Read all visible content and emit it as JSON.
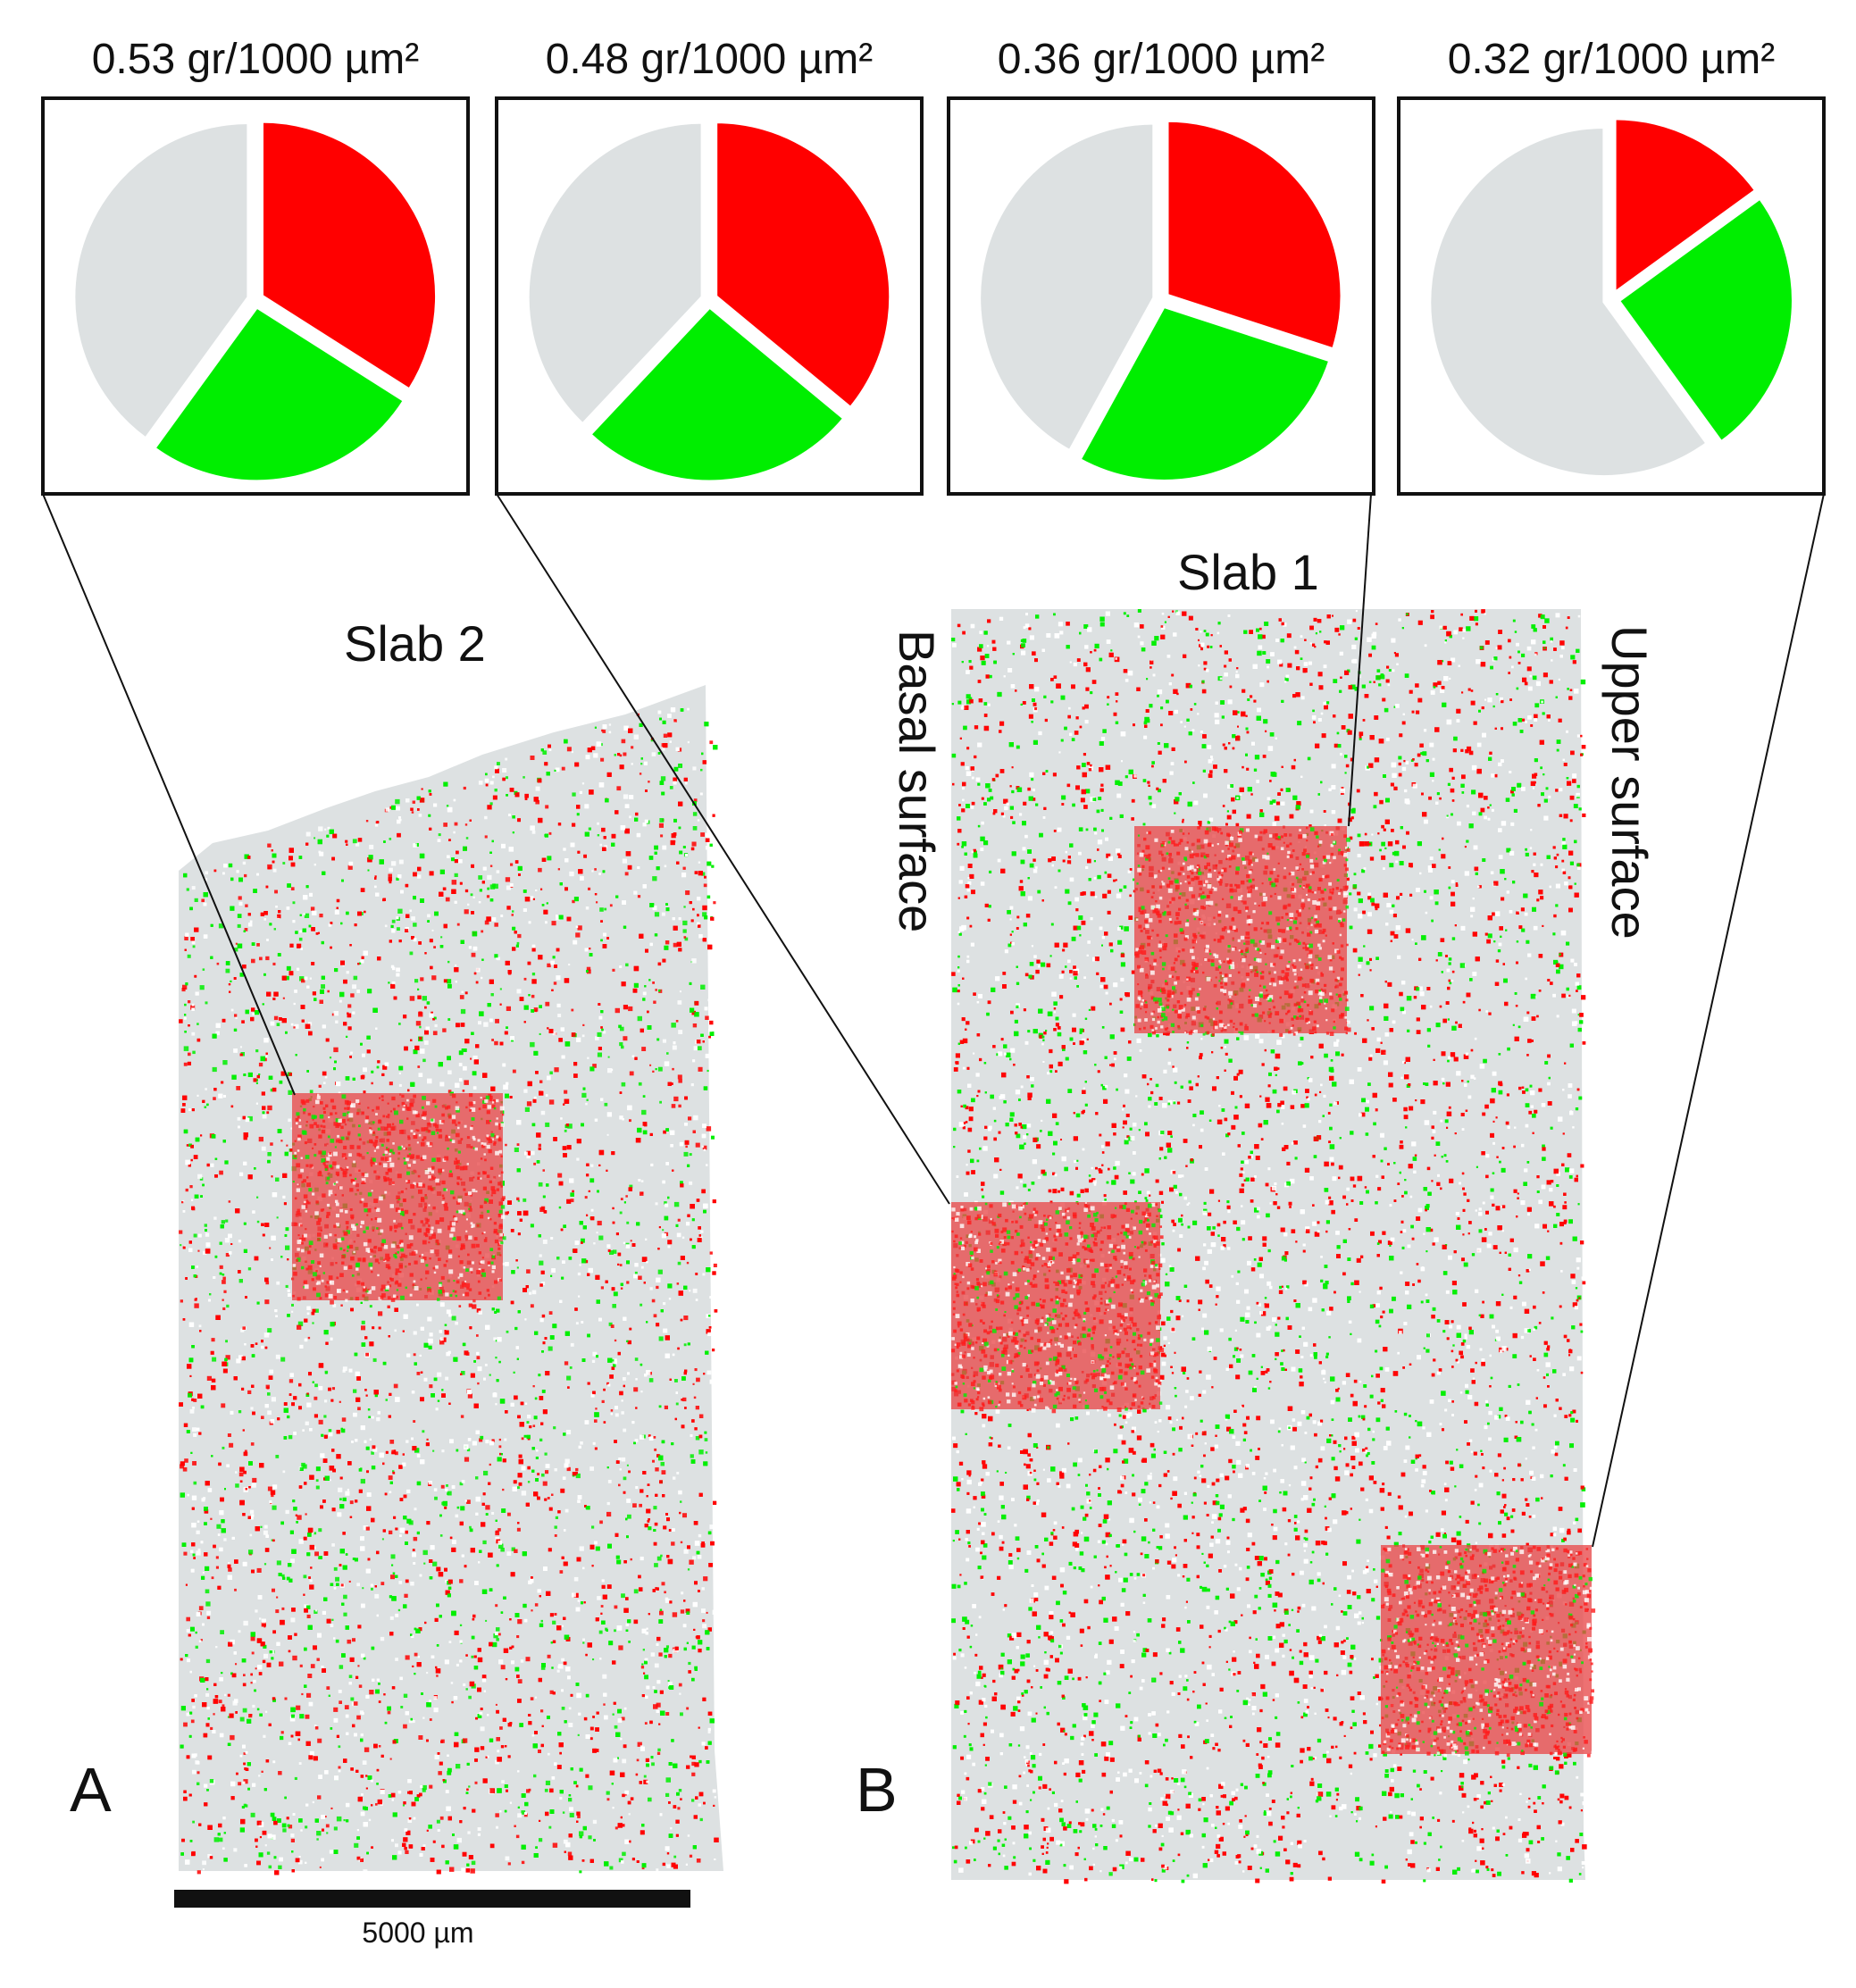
{
  "colors": {
    "red": "#ff0000",
    "green": "#00ee00",
    "gray": "#dde1e2",
    "outline": "#111111",
    "background": "#ffffff"
  },
  "chart_data": [
    {
      "type": "pie",
      "title": "0.53 gr/1000 µm²",
      "slices": [
        {
          "color": "red",
          "value": 0.34
        },
        {
          "color": "green",
          "value": 0.26
        },
        {
          "color": "gray",
          "value": 0.4
        }
      ]
    },
    {
      "type": "pie",
      "title": "0.48 gr/1000 µm²",
      "slices": [
        {
          "color": "red",
          "value": 0.36
        },
        {
          "color": "green",
          "value": 0.26
        },
        {
          "color": "gray",
          "value": 0.38
        }
      ]
    },
    {
      "type": "pie",
      "title": "0.36 gr/1000 µm²",
      "slices": [
        {
          "color": "red",
          "value": 0.3
        },
        {
          "color": "green",
          "value": 0.28
        },
        {
          "color": "gray",
          "value": 0.42
        }
      ]
    },
    {
      "type": "pie",
      "title": "0.32 gr/1000 µm²",
      "slices": [
        {
          "color": "red",
          "value": 0.15
        },
        {
          "color": "green",
          "value": 0.25
        },
        {
          "color": "gray",
          "value": 0.6
        }
      ]
    }
  ],
  "labels": {
    "slab2": "Slab 2",
    "slab1": "Slab 1",
    "basal_surface": "Basal surface",
    "upper_surface": "Upper surface",
    "panel_a": "A",
    "panel_b": "B",
    "scale_bar": "5000 µm"
  }
}
